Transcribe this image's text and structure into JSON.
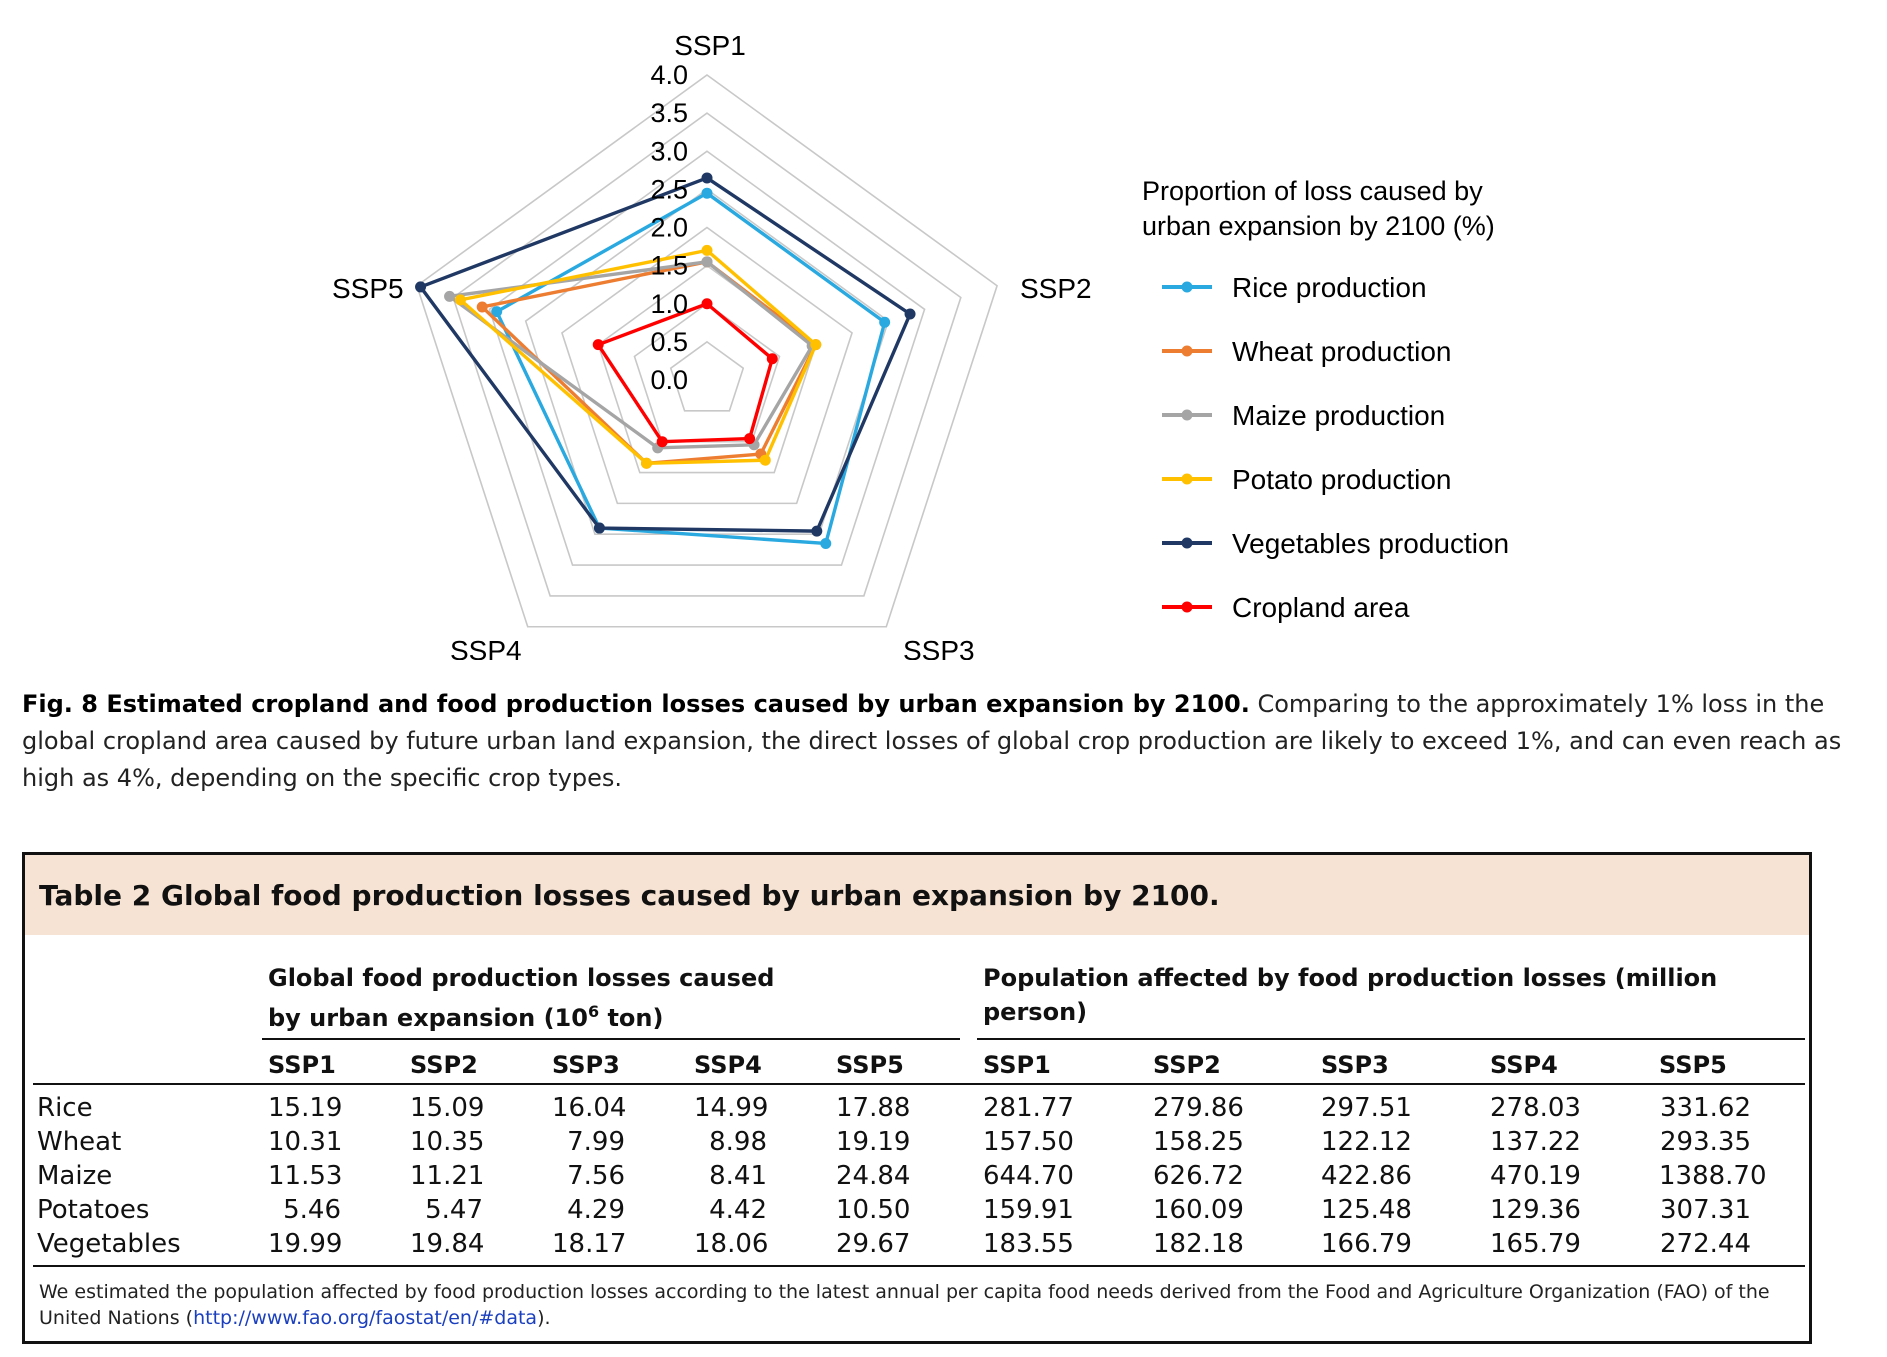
{
  "chart_data": {
    "type": "radar",
    "axes": [
      "SSP1",
      "SSP2",
      "SSP3",
      "SSP4",
      "SSP5"
    ],
    "rlim": [
      0,
      4.0
    ],
    "radial_ticks": [
      "4.0",
      "3.5",
      "3.0",
      "2.5",
      "2.0",
      "1.5",
      "1.0",
      "0.5",
      "0.0"
    ],
    "grid": true,
    "legend_title": "Proportion of loss caused by urban expansion by 2100 (%)",
    "legend_position": "right",
    "series": [
      {
        "name": "Rice production",
        "color": "#29a9e0",
        "values": [
          2.45,
          2.45,
          2.65,
          2.4,
          2.9
        ]
      },
      {
        "name": "Wheat production",
        "color": "#ed7d31",
        "values": [
          1.55,
          1.5,
          1.2,
          1.35,
          3.1
        ]
      },
      {
        "name": "Maize production",
        "color": "#a5a5a5",
        "values": [
          1.55,
          1.45,
          1.05,
          1.1,
          3.55
        ]
      },
      {
        "name": "Potato production",
        "color": "#ffc000",
        "values": [
          1.7,
          1.5,
          1.3,
          1.35,
          3.4
        ]
      },
      {
        "name": "Vegetables production",
        "color": "#203864",
        "values": [
          2.65,
          2.8,
          2.45,
          2.4,
          3.95
        ]
      },
      {
        "name": "Cropland area",
        "color": "#ff0000",
        "values": [
          1.0,
          0.9,
          0.95,
          1.0,
          1.5
        ]
      }
    ]
  },
  "caption": {
    "title": "Fig. 8 Estimated cropland and food production losses caused by urban expansion by 2100.",
    "body": " Comparing to the approximately 1% loss in the global cropland area caused by future urban land expansion, the direct losses of global crop production are likely to exceed 1%, and can even reach as high as 4%, depending on the specific crop types."
  },
  "table": {
    "title": "Table 2 Global food production losses caused by urban expansion by 2100.",
    "group1": "Global food production losses caused by urban expansion (10",
    "group1_sup": "6",
    "group1_tail": " ton)",
    "group2": "Population affected by food production losses (million person)",
    "columns": [
      "SSP1",
      "SSP2",
      "SSP3",
      "SSP4",
      "SSP5",
      "SSP1",
      "SSP2",
      "SSP3",
      "SSP4",
      "SSP5"
    ],
    "rows": [
      {
        "label": "Rice",
        "values": [
          "15.19",
          "15.09",
          "16.04",
          "14.99",
          "17.88",
          "281.77",
          "279.86",
          "297.51",
          "278.03",
          "331.62"
        ]
      },
      {
        "label": "Wheat",
        "values": [
          "10.31",
          "10.35",
          "7.99",
          "8.98",
          "19.19",
          "157.50",
          "158.25",
          "122.12",
          "137.22",
          "293.35"
        ]
      },
      {
        "label": "Maize",
        "values": [
          "11.53",
          "11.21",
          "7.56",
          "8.41",
          "24.84",
          "644.70",
          "626.72",
          "422.86",
          "470.19",
          "1388.70"
        ]
      },
      {
        "label": "Potatoes",
        "values": [
          "5.46",
          "5.47",
          "4.29",
          "4.42",
          "10.50",
          "159.91",
          "160.09",
          "125.48",
          "129.36",
          "307.31"
        ]
      },
      {
        "label": "Vegetables",
        "values": [
          "19.99",
          "19.84",
          "18.17",
          "18.06",
          "29.67",
          "183.55",
          "182.18",
          "166.79",
          "165.79",
          "272.44"
        ]
      }
    ],
    "footnote": "We estimated the population affected by food production losses according to the latest annual per capita food needs derived from the Food and Agriculture Organization (FAO) of the United Nations (",
    "footnote_link": "http://www.fao.org/faostat/en/#data",
    "footnote_end": ")."
  }
}
